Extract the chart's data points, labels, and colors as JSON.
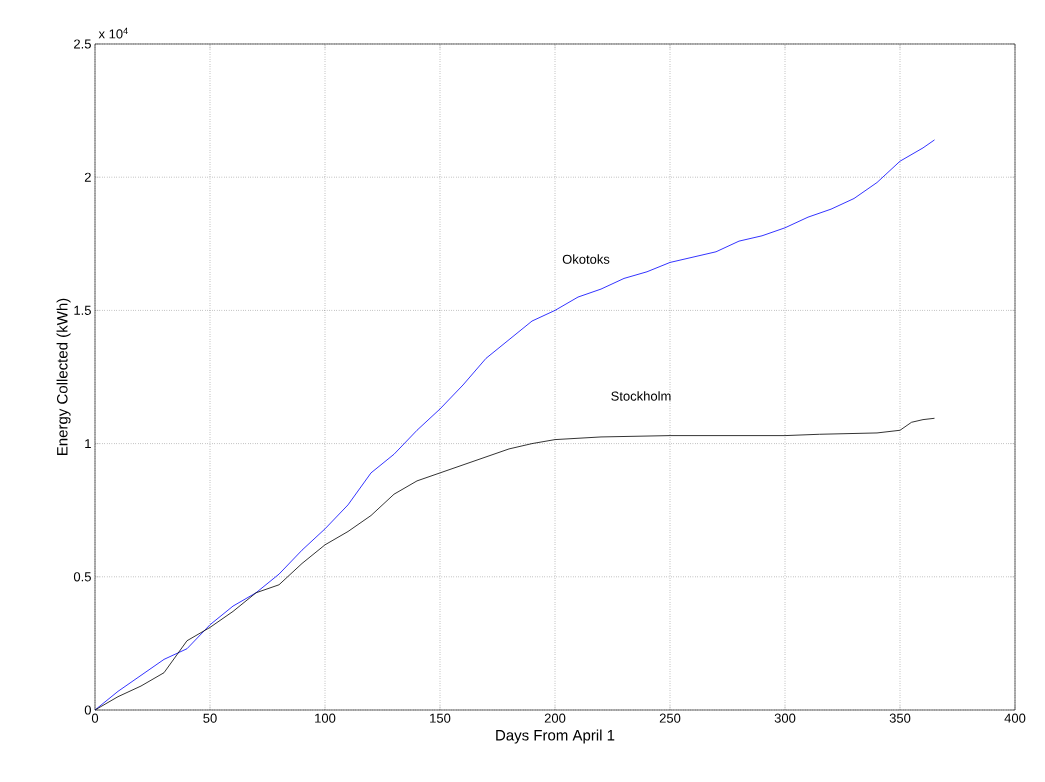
{
  "chart_data": {
    "type": "line",
    "xlabel": "Days From April 1",
    "ylabel": "Energy Collected  (kWh)",
    "annotations": [
      "x 10$^{4}$"
    ],
    "xlim": [
      0,
      400
    ],
    "ylim": [
      0,
      2.5
    ],
    "xticks": [
      0,
      50,
      100,
      150,
      200,
      250,
      300,
      350,
      400
    ],
    "yticks": [
      0,
      0.5,
      1,
      1.5,
      2,
      2.5
    ],
    "grid": true,
    "series": [
      {
        "name": "Okotoks",
        "color": "#0000ff",
        "x": [
          0,
          10,
          20,
          30,
          40,
          50,
          60,
          70,
          80,
          90,
          100,
          110,
          120,
          130,
          140,
          150,
          160,
          170,
          180,
          190,
          200,
          210,
          220,
          230,
          240,
          250,
          260,
          270,
          280,
          290,
          300,
          310,
          320,
          330,
          340,
          350,
          360,
          365
        ],
        "values": [
          0,
          0.07,
          0.13,
          0.19,
          0.23,
          0.32,
          0.39,
          0.44,
          0.51,
          0.6,
          0.68,
          0.77,
          0.89,
          0.96,
          1.05,
          1.13,
          1.22,
          1.32,
          1.39,
          1.46,
          1.5,
          1.55,
          1.58,
          1.62,
          1.645,
          1.68,
          1.7,
          1.72,
          1.76,
          1.78,
          1.81,
          1.85,
          1.88,
          1.92,
          1.98,
          2.06,
          2.11,
          2.14
        ]
      },
      {
        "name": "Stockholm",
        "color": "#000000",
        "x": [
          0,
          10,
          20,
          30,
          40,
          50,
          60,
          70,
          80,
          90,
          100,
          110,
          120,
          130,
          140,
          150,
          160,
          170,
          180,
          190,
          200,
          210,
          220,
          250,
          300,
          315,
          340,
          350,
          355,
          360,
          365
        ],
        "values": [
          0,
          0.05,
          0.09,
          0.14,
          0.26,
          0.31,
          0.37,
          0.44,
          0.47,
          0.55,
          0.62,
          0.67,
          0.73,
          0.81,
          0.86,
          0.89,
          0.92,
          0.95,
          0.98,
          1.0,
          1.015,
          1.02,
          1.025,
          1.03,
          1.03,
          1.035,
          1.04,
          1.05,
          1.08,
          1.09,
          1.095
        ]
      }
    ]
  }
}
